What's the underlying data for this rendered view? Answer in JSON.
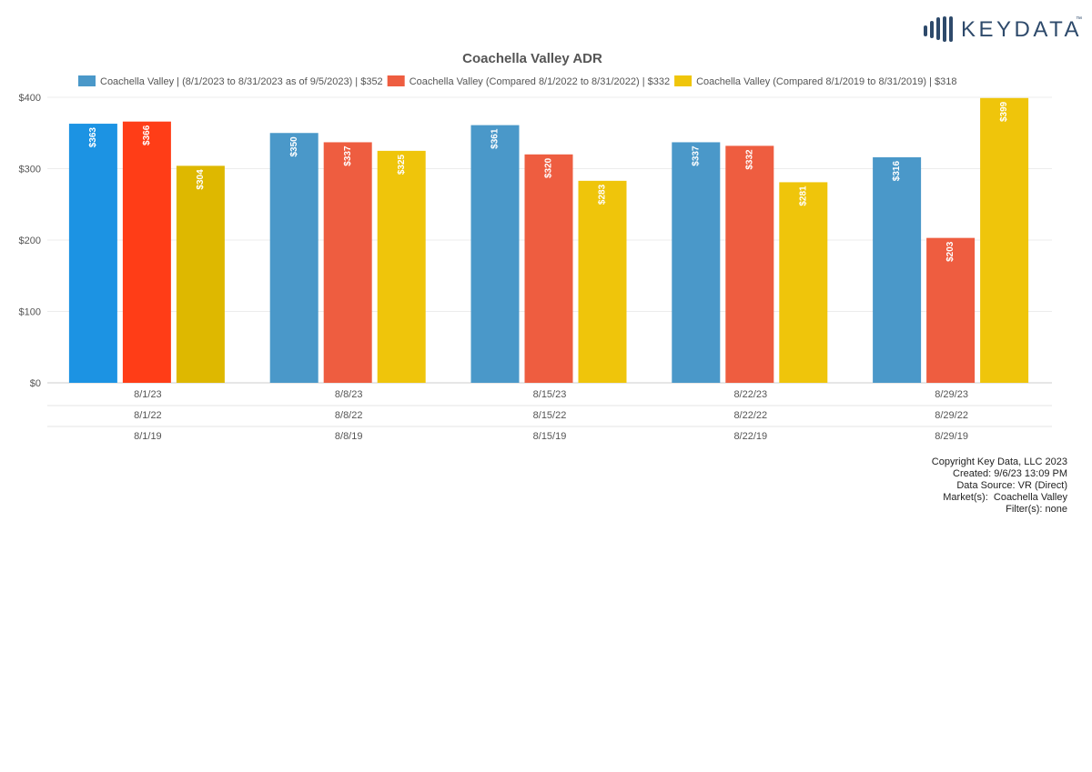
{
  "brand": {
    "name": "KEYDATA",
    "trademark": "™"
  },
  "chart_data": {
    "type": "bar",
    "title": "Coachella Valley ADR",
    "categories": [
      "8/1/23",
      "8/8/23",
      "8/15/23",
      "8/22/23",
      "8/29/23"
    ],
    "category_rows": [
      [
        "8/1/23",
        "8/8/23",
        "8/15/23",
        "8/22/23",
        "8/29/23"
      ],
      [
        "8/1/22",
        "8/8/22",
        "8/15/22",
        "8/22/22",
        "8/29/22"
      ],
      [
        "8/1/19",
        "8/8/19",
        "8/15/19",
        "8/22/19",
        "8/29/19"
      ]
    ],
    "series": [
      {
        "name": "Coachella Valley | (8/1/2023 to 8/31/2023 as of 9/5/2023) | $352",
        "color": "#4a98c9",
        "values": [
          363,
          350,
          361,
          337,
          316
        ],
        "labels": [
          "$363",
          "$350",
          "$361",
          "$337",
          "$316"
        ]
      },
      {
        "name": "Coachella Valley (Compared 8/1/2022 to 8/31/2022) | $332",
        "color": "#ee5d40",
        "values": [
          366,
          337,
          320,
          332,
          203
        ],
        "labels": [
          "$366",
          "$337",
          "$320",
          "$332",
          "$203"
        ]
      },
      {
        "name": "Coachella Valley (Compared 8/1/2019 to 8/31/2019) | $318",
        "color": "#efc50b",
        "values": [
          304,
          325,
          283,
          281,
          399
        ],
        "labels": [
          "$304",
          "$325",
          "$283",
          "$281",
          "$399"
        ]
      }
    ],
    "highlight_group": 0,
    "highlight_colors": [
      "#1c93e3",
      "#ff3d17",
      "#deb800"
    ],
    "ylim": [
      0,
      400
    ],
    "yticks": [
      0,
      100,
      200,
      300,
      400
    ],
    "ytick_labels": [
      "$0",
      "$100",
      "$200",
      "$300",
      "$400"
    ],
    "grid": true,
    "legend": "top"
  },
  "footer": {
    "copyright": "Copyright Key Data, LLC 2023",
    "created": "Created: 9/6/23 13:09 PM",
    "source": "Data Source: VR (Direct)",
    "markets": "Market(s):  Coachella Valley",
    "filters": "Filter(s): none"
  }
}
